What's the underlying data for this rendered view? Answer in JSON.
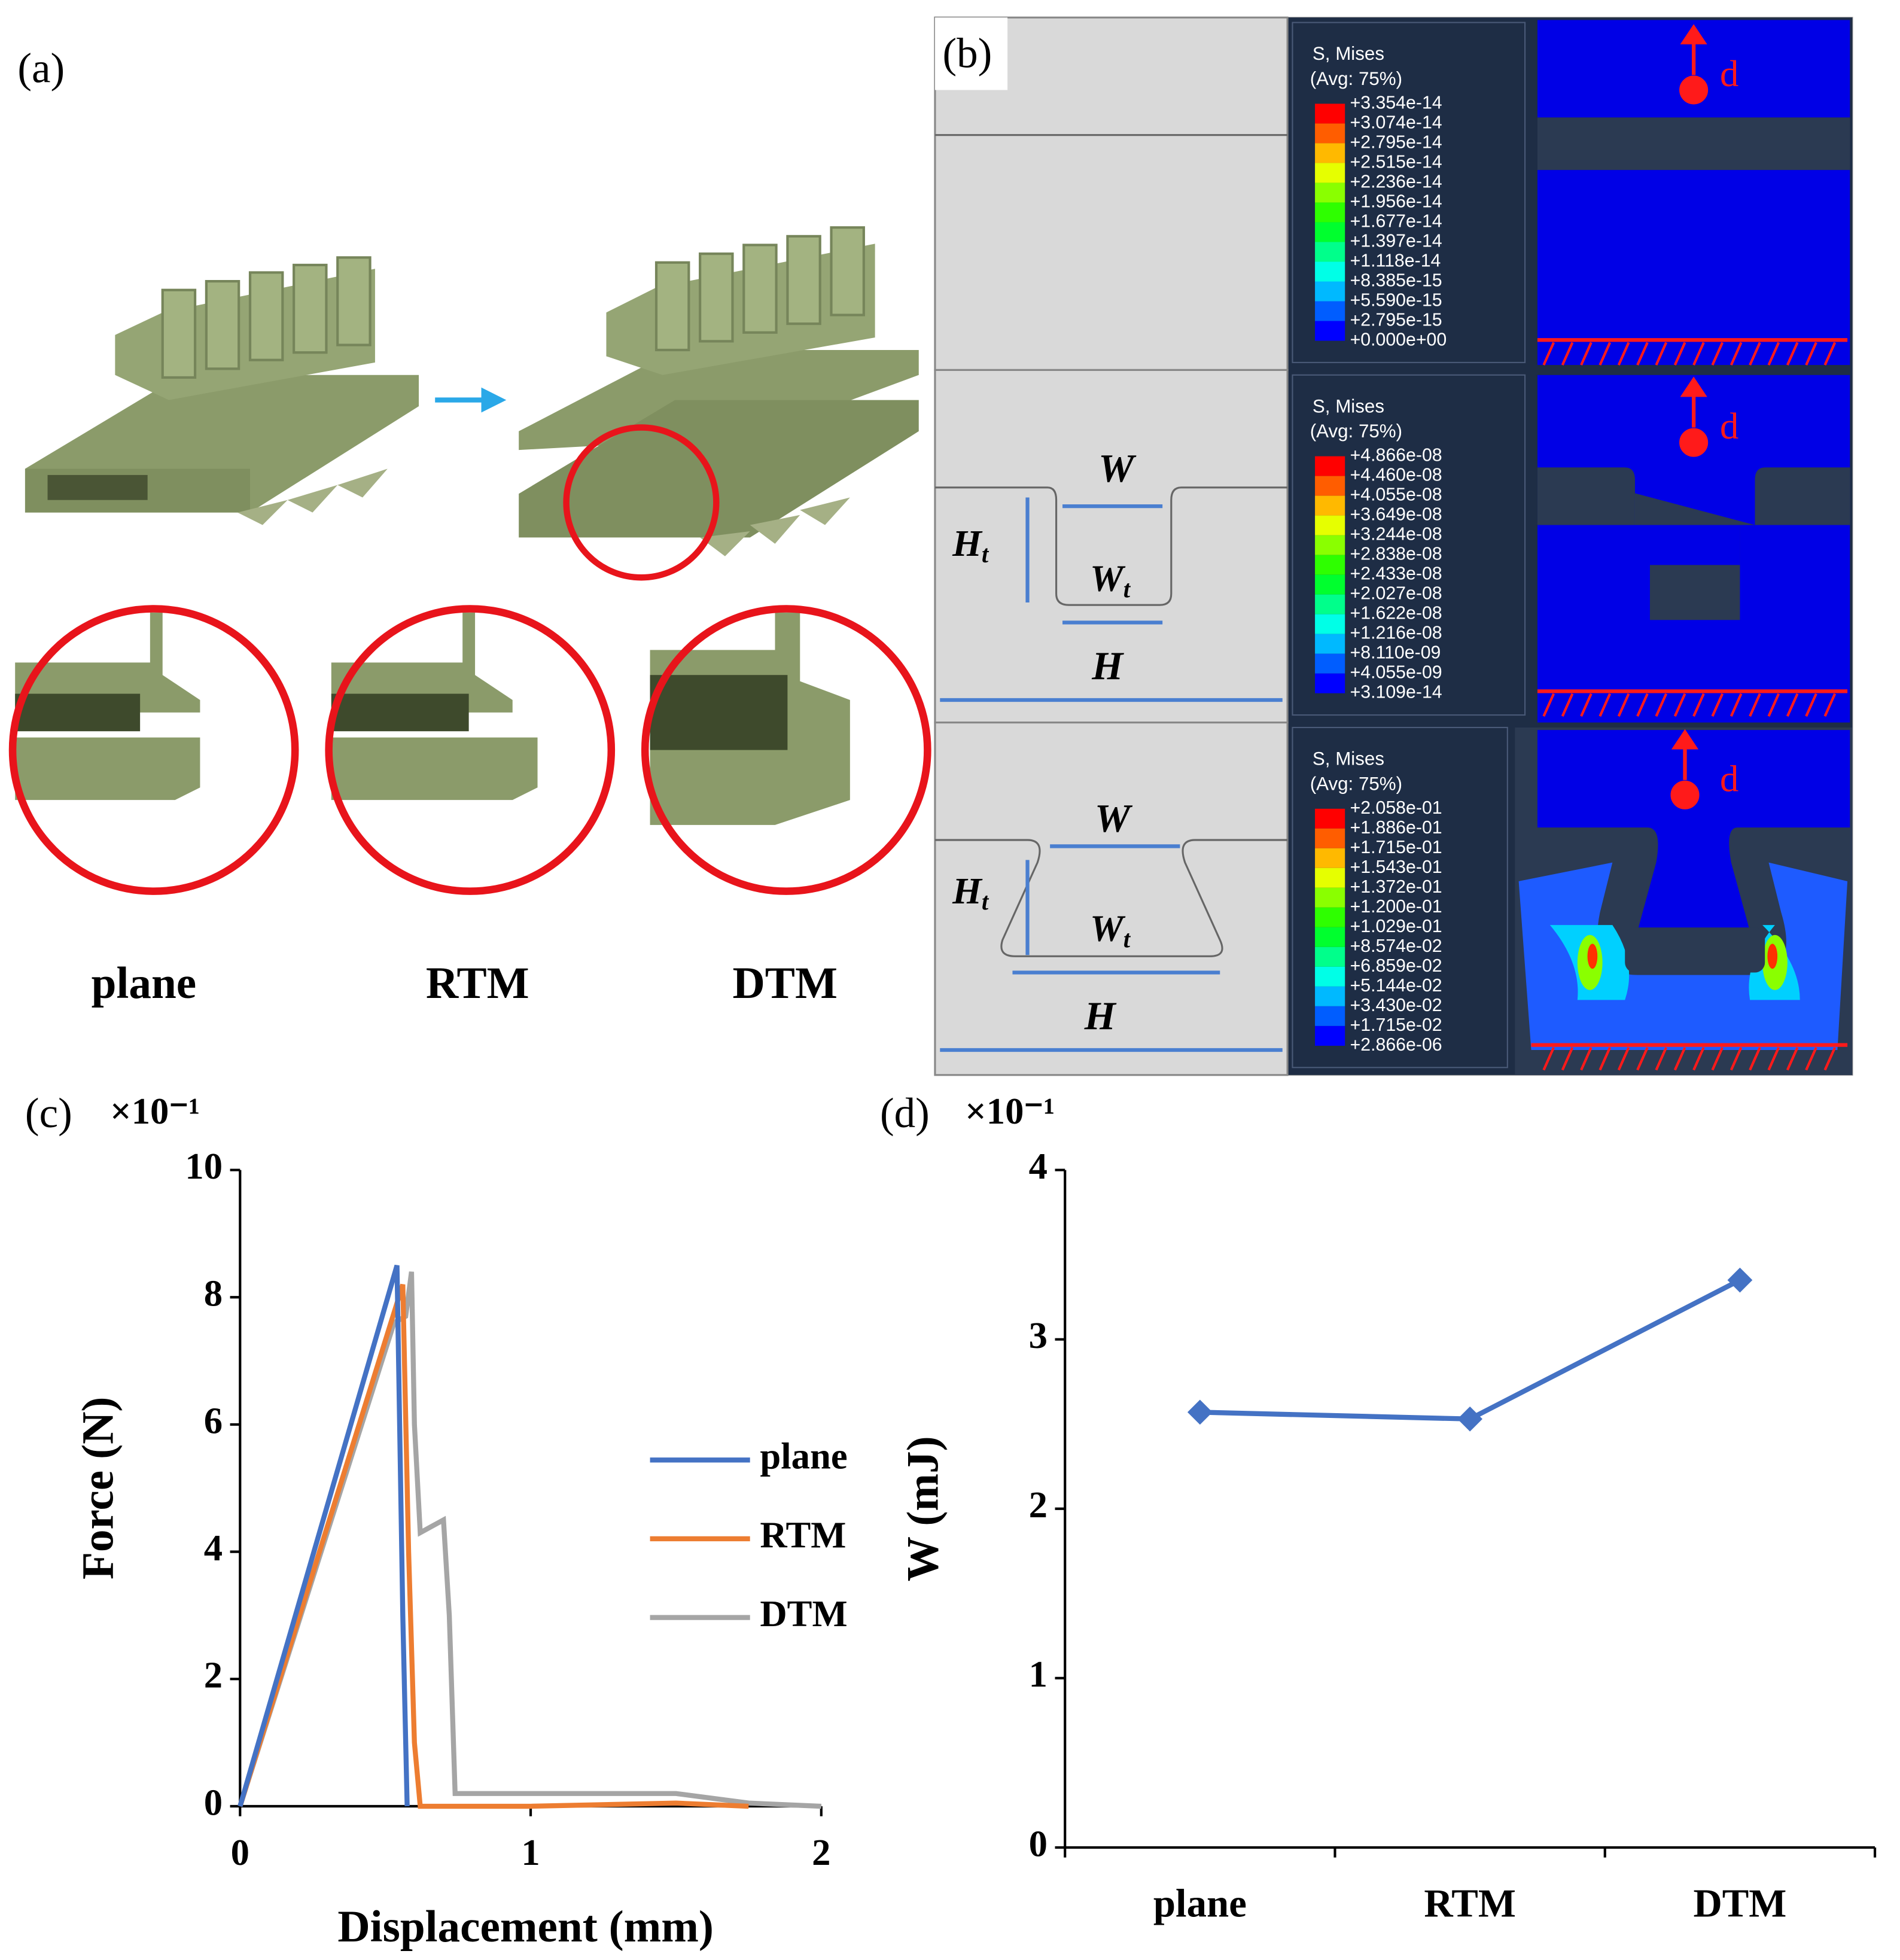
{
  "panels": {
    "a": {
      "label": "(a)",
      "captions": [
        "plane",
        "RTM",
        "DTM"
      ]
    },
    "b": {
      "label": "(b)",
      "load_label": "d",
      "dims": {
        "W": "W",
        "Ht": {
          "main": "H",
          "sub": "t"
        },
        "Wt": {
          "main": "W",
          "sub": "t"
        },
        "H": "H"
      },
      "rows": [
        {
          "legend_title": "S, Mises",
          "legend_avg": "(Avg: 75%)",
          "levels": [
            "+3.354e-14",
            "+3.074e-14",
            "+2.795e-14",
            "+2.515e-14",
            "+2.236e-14",
            "+1.956e-14",
            "+1.677e-14",
            "+1.397e-14",
            "+1.118e-14",
            "+8.385e-15",
            "+5.590e-15",
            "+2.795e-15",
            "+0.000e+00"
          ]
        },
        {
          "legend_title": "S, Mises",
          "legend_avg": "(Avg: 75%)",
          "levels": [
            "+4.866e-08",
            "+4.460e-08",
            "+4.055e-08",
            "+3.649e-08",
            "+3.244e-08",
            "+2.838e-08",
            "+2.433e-08",
            "+2.027e-08",
            "+1.622e-08",
            "+1.216e-08",
            "+8.110e-09",
            "+4.055e-09",
            "+3.109e-14"
          ]
        },
        {
          "legend_title": "S, Mises",
          "legend_avg": "(Avg: 75%)",
          "levels": [
            "+2.058e-01",
            "+1.886e-01",
            "+1.715e-01",
            "+1.543e-01",
            "+1.372e-01",
            "+1.200e-01",
            "+1.029e-01",
            "+8.574e-02",
            "+6.859e-02",
            "+5.144e-02",
            "+3.430e-02",
            "+1.715e-02",
            "+2.866e-06"
          ]
        }
      ]
    }
  },
  "chart_data": [
    {
      "type": "line",
      "panel_label": "(c)",
      "multiplier": "×10⁻¹",
      "x_label": "Displacement (mm)",
      "y_label": "Force (N)",
      "xlim": [
        0,
        2
      ],
      "xticks": [
        0,
        1,
        2
      ],
      "ylim": [
        0,
        10
      ],
      "yticks": [
        0,
        2,
        4,
        6,
        8,
        10
      ],
      "legend": "right",
      "series": [
        {
          "name": "plane",
          "color": "#4472c4",
          "x": [
            0,
            0.54,
            0.56,
            0.575
          ],
          "values": [
            0,
            8.5,
            3,
            0
          ]
        },
        {
          "name": "RTM",
          "color": "#ed7d31",
          "x": [
            0,
            0.56,
            0.58,
            0.6,
            0.62,
            1.0,
            1.5,
            1.75
          ],
          "values": [
            0,
            8.2,
            4,
            1,
            0,
            0,
            0.05,
            0
          ]
        },
        {
          "name": "DTM",
          "color": "#a5a5a5",
          "x": [
            0,
            0.53,
            0.57,
            0.59,
            0.6,
            0.62,
            0.66,
            0.7,
            0.72,
            0.74,
            1.0,
            1.5,
            1.75,
            2.0
          ],
          "values": [
            0,
            7.6,
            7.7,
            8.4,
            6,
            4.3,
            4.4,
            4.5,
            3,
            0.2,
            0.2,
            0.2,
            0.05,
            0
          ]
        }
      ]
    },
    {
      "type": "line",
      "panel_label": "(d)",
      "multiplier": "×10⁻¹",
      "y_label": "W (mJ)",
      "categories": [
        "plane",
        "RTM",
        "DTM"
      ],
      "values": [
        2.57,
        2.53,
        3.35
      ],
      "color": "#4472c4",
      "ylim": [
        0,
        4
      ],
      "yticks": [
        0,
        1,
        2,
        3,
        4
      ]
    }
  ]
}
